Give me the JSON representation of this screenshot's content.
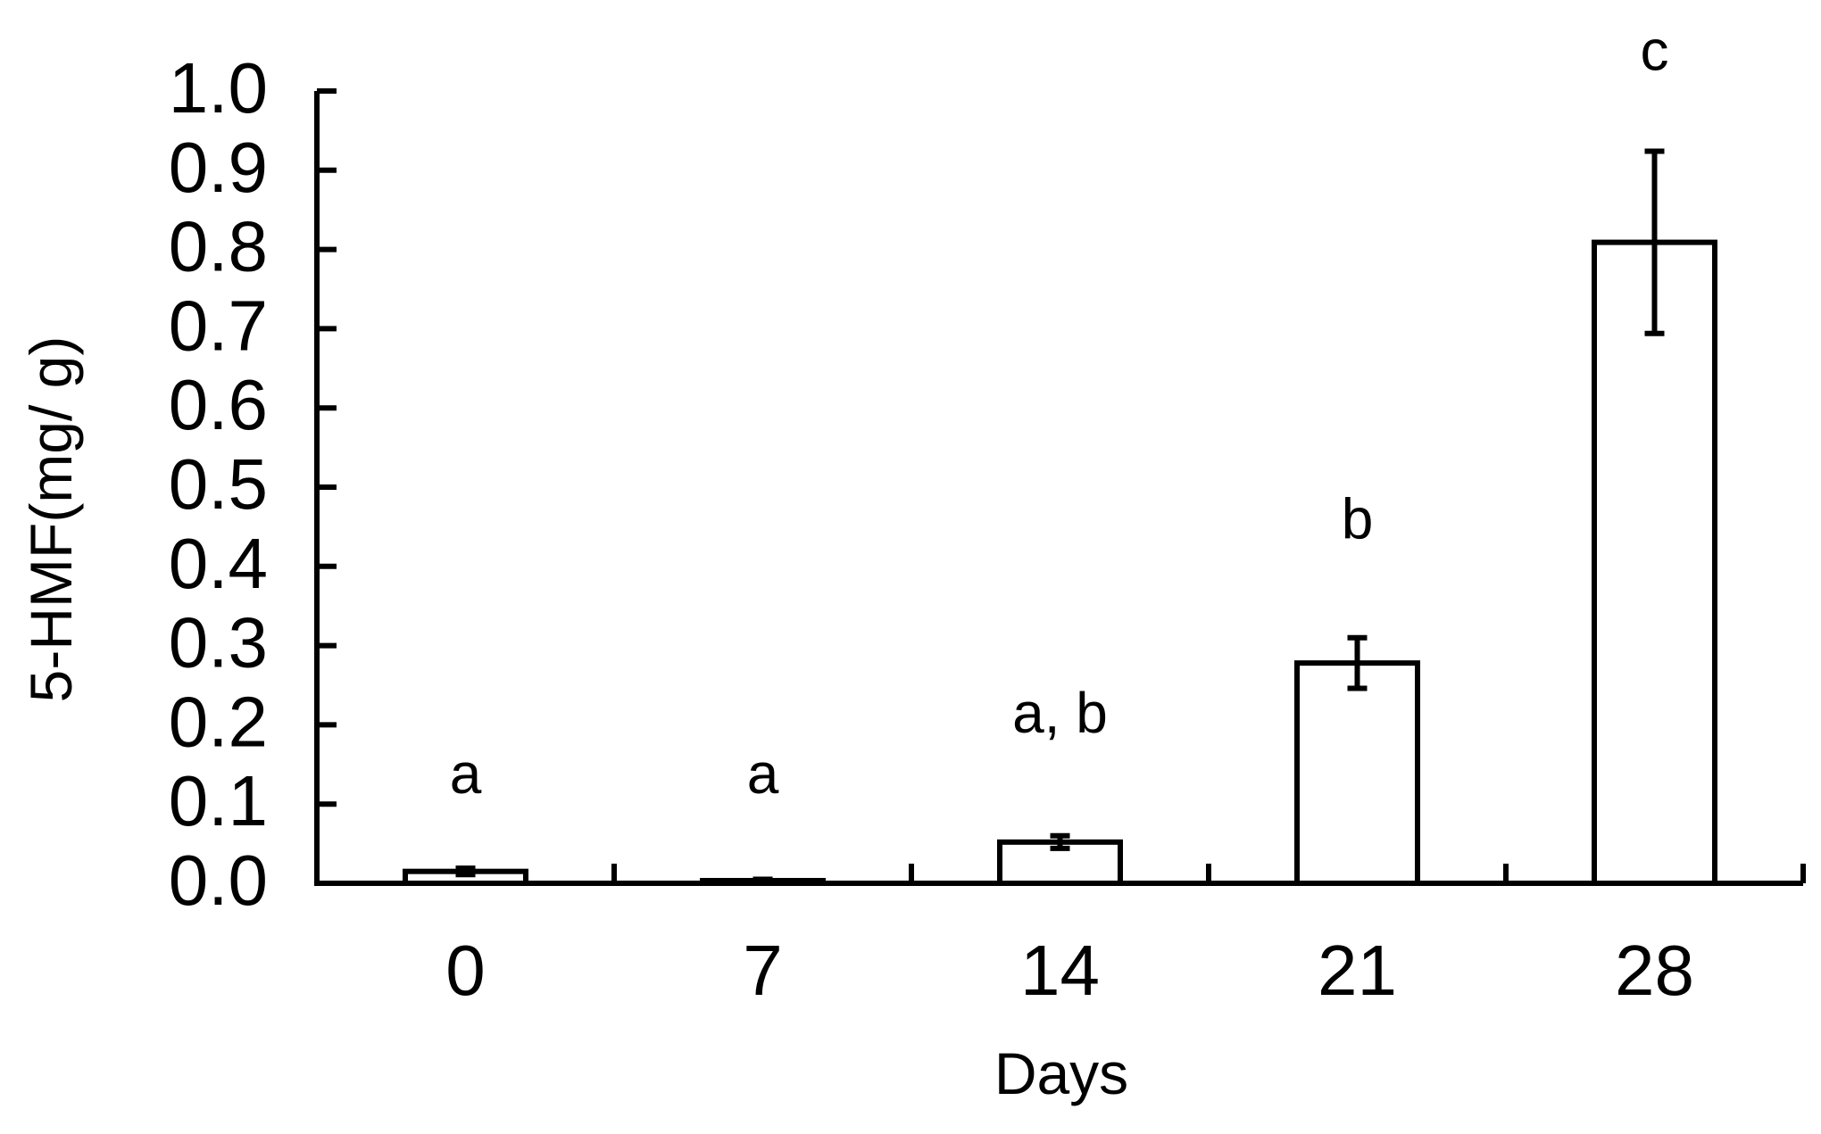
{
  "chart_data": {
    "type": "bar",
    "xlabel": "Days",
    "ylabel": "5-HMF(mg/ g)",
    "categories": [
      "0",
      "7",
      "14",
      "21",
      "28"
    ],
    "values": [
      0.015,
      0.003,
      0.052,
      0.278,
      0.809
    ],
    "errors": [
      0.004,
      0.002,
      0.008,
      0.032,
      0.115
    ],
    "annotations": [
      "a",
      "a",
      "a, b",
      "b",
      "c"
    ],
    "annotation_y": [
      0.136,
      0.136,
      0.213,
      0.458,
      1.049
    ],
    "ylim": [
      0.0,
      1.0
    ],
    "yticks": [
      "0.0",
      "0.1",
      "0.2",
      "0.3",
      "0.4",
      "0.5",
      "0.6",
      "0.7",
      "0.8",
      "0.9",
      "1.0"
    ],
    "grid": false,
    "legend": "none",
    "colors": {
      "bar_fill": "#ffffff",
      "stroke": "#000000"
    }
  }
}
